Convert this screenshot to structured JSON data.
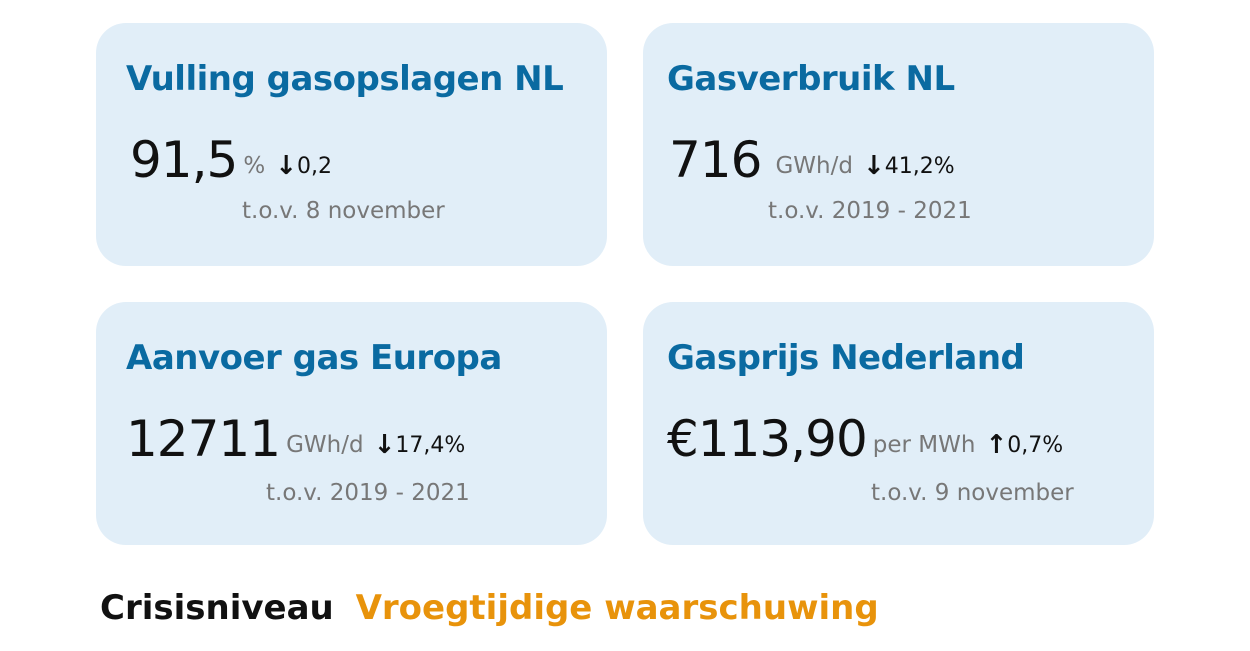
{
  "cards": [
    {
      "title": "Vulling gasopslagen NL",
      "value": "91,5",
      "unit": "%",
      "direction": "down",
      "arrow": "↓",
      "change": "0,2",
      "reference": "t.o.v. 8 november"
    },
    {
      "title": "Gasverbruik NL",
      "value": "716",
      "unit": "GWh/d",
      "direction": "down",
      "arrow": "↓",
      "change": "41,2%",
      "reference": "t.o.v. 2019 - 2021"
    },
    {
      "title": "Aanvoer gas Europa",
      "value": "12711",
      "unit": "GWh/d",
      "direction": "down",
      "arrow": "↓",
      "change": "17,4%",
      "reference": "t.o.v. 2019 - 2021"
    },
    {
      "title": "Gasprijs Nederland",
      "value": "€113,90",
      "unit": "per MWh",
      "direction": "up",
      "arrow": "↑",
      "change": "0,7%",
      "reference": "t.o.v. 9 november"
    }
  ],
  "crisis": {
    "label": "Crisisniveau",
    "level": "Vroegtijdige waarschuwing"
  },
  "colors": {
    "card_bg": "#e1eef8",
    "title": "#0a6aa1",
    "level": "#e8930b"
  }
}
